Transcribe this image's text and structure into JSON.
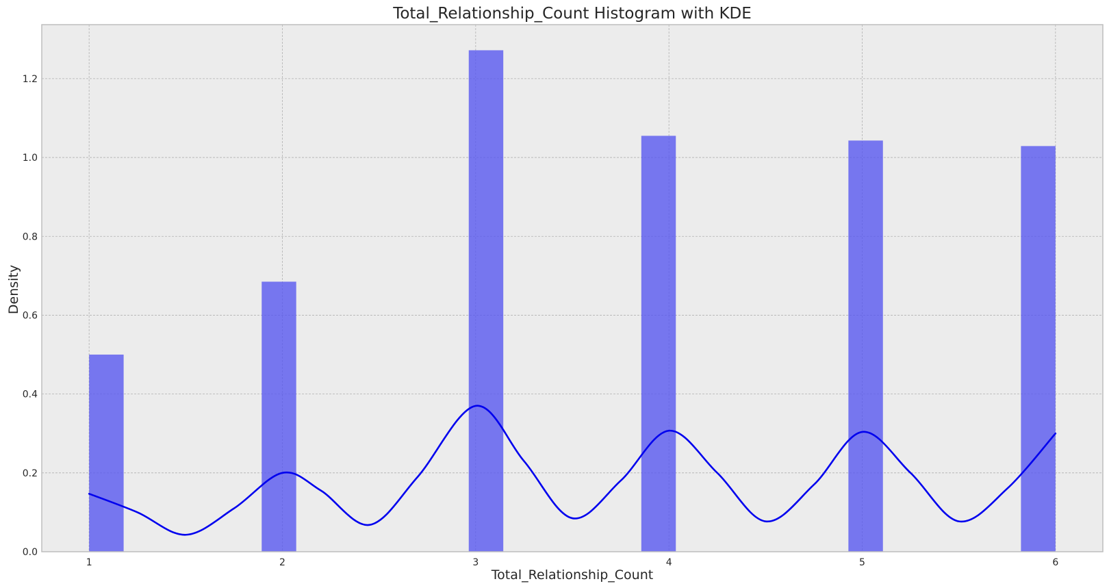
{
  "chart_data": {
    "type": "bar",
    "title": "Total_Relationship_Count Histogram with KDE",
    "xlabel": "Total_Relationship_Count",
    "ylabel": "Density",
    "xlim": [
      0.755,
      6.245
    ],
    "ylim": [
      0,
      1.337
    ],
    "x_ticks": [
      1,
      2,
      3,
      4,
      5,
      6
    ],
    "y_ticks": [
      0.0,
      0.2,
      0.4,
      0.6,
      0.8,
      1.0,
      1.2
    ],
    "grid": true,
    "bar_color": "#5555f0",
    "kde_color": "#0000ee",
    "background_color": "#ececec",
    "histogram": {
      "bin_width": 0.1786,
      "bins": [
        {
          "x_start": 1.0,
          "value": 0.5
        },
        {
          "x_start": 1.8929,
          "value": 0.685
        },
        {
          "x_start": 2.9643,
          "value": 1.272
        },
        {
          "x_start": 3.8571,
          "value": 1.055
        },
        {
          "x_start": 4.9286,
          "value": 1.043
        },
        {
          "x_start": 5.8214,
          "value": 1.029
        }
      ]
    },
    "kde": {
      "name": "KDE",
      "x": [
        1.0,
        1.25,
        1.5,
        1.75,
        2.0,
        2.2,
        2.45,
        2.7,
        3.0,
        3.25,
        3.5,
        3.75,
        4.0,
        4.25,
        4.5,
        4.75,
        5.0,
        5.25,
        5.5,
        5.75,
        6.0
      ],
      "y": [
        0.147,
        0.1,
        0.043,
        0.11,
        0.2,
        0.155,
        0.068,
        0.19,
        0.37,
        0.23,
        0.085,
        0.18,
        0.307,
        0.2,
        0.077,
        0.17,
        0.304,
        0.2,
        0.077,
        0.16,
        0.3
      ]
    }
  }
}
